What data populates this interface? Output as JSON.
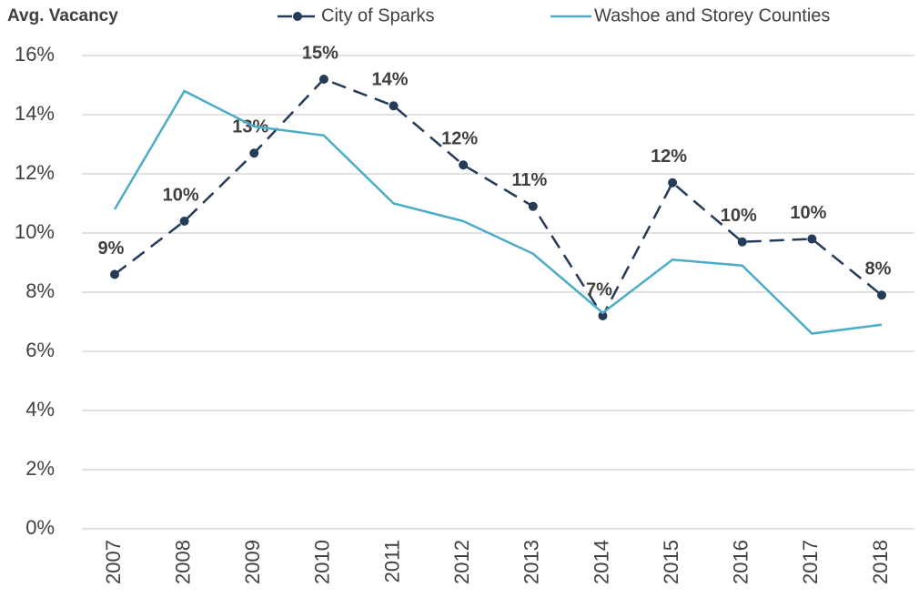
{
  "chart_data": {
    "type": "line",
    "title": "Avg. Vacancy",
    "categories": [
      "2007",
      "2008",
      "2009",
      "2010",
      "2011",
      "2012",
      "2013",
      "2014",
      "2015",
      "2016",
      "2017",
      "2018"
    ],
    "series": [
      {
        "name": "City of Sparks",
        "color": "#243b5a",
        "dashed": true,
        "markers": true,
        "values": [
          8.6,
          10.4,
          12.7,
          15.2,
          14.3,
          12.3,
          10.9,
          7.2,
          11.7,
          9.7,
          9.8,
          7.9
        ],
        "value_labels": [
          "9%",
          "10%",
          "13%",
          "15%",
          "14%",
          "12%",
          "11%",
          "7%",
          "12%",
          "10%",
          "10%",
          "8%"
        ]
      },
      {
        "name": "Washoe and Storey Counties",
        "color": "#4bacc6",
        "dashed": false,
        "markers": false,
        "values": [
          10.8,
          14.8,
          13.6,
          13.3,
          11.0,
          10.4,
          9.3,
          7.3,
          9.1,
          8.9,
          6.6,
          6.9
        ]
      }
    ],
    "ylim": [
      0,
      16
    ],
    "yticks": [
      {
        "value": 0,
        "label": "0%"
      },
      {
        "value": 2,
        "label": "2%"
      },
      {
        "value": 4,
        "label": "4%"
      },
      {
        "value": 6,
        "label": "6%"
      },
      {
        "value": 8,
        "label": "8%"
      },
      {
        "value": 10,
        "label": "10%"
      },
      {
        "value": 12,
        "label": "12%"
      },
      {
        "value": 14,
        "label": "14%"
      },
      {
        "value": 16,
        "label": "16%"
      }
    ],
    "grid": true
  }
}
